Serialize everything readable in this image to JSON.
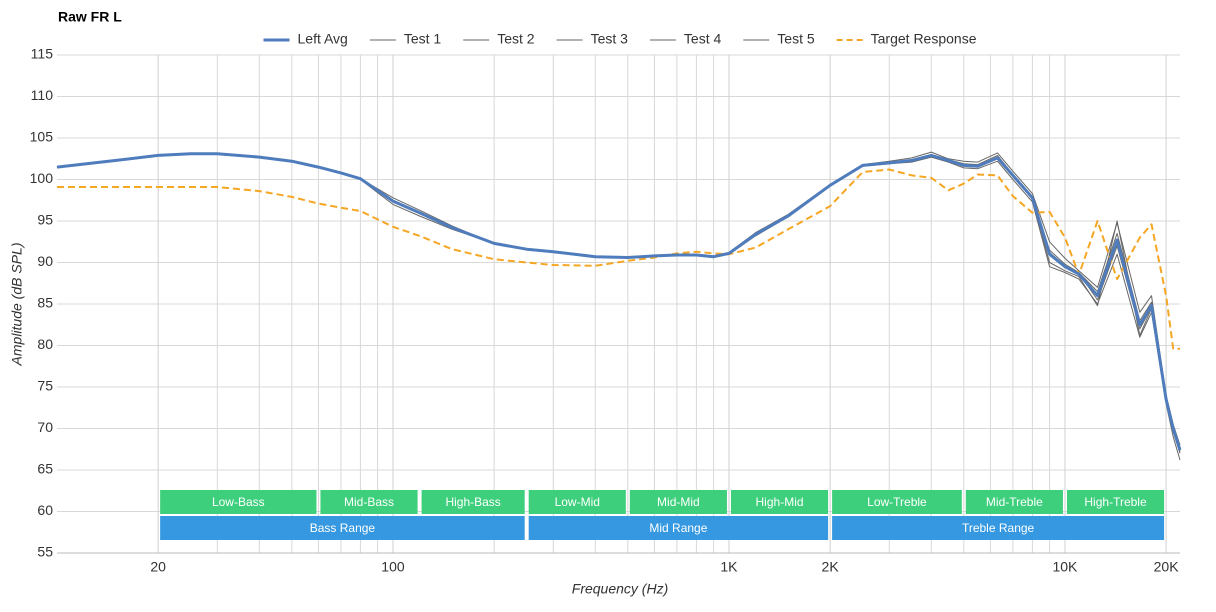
{
  "chart_data": {
    "type": "line",
    "title": "Raw FR L",
    "x_label": "Frequency (Hz)",
    "y_label": "Amplitude (dB SPL)",
    "x_scale": "log",
    "xlim": [
      10,
      22000
    ],
    "ylim": [
      55,
      115
    ],
    "xticks": [
      20,
      100,
      {
        "value": 1000,
        "label": "1K"
      },
      {
        "value": 2000,
        "label": "2K"
      },
      {
        "value": 10000,
        "label": "10K"
      },
      {
        "value": 20000,
        "label": "20K"
      }
    ],
    "xminor": [
      30,
      40,
      50,
      60,
      70,
      80,
      90,
      200,
      300,
      400,
      500,
      600,
      700,
      800,
      900,
      3000,
      4000,
      5000,
      6000,
      7000,
      8000,
      9000
    ],
    "yticks": [
      55,
      60,
      65,
      70,
      75,
      80,
      85,
      90,
      95,
      100,
      105,
      110,
      115
    ],
    "grid": true,
    "legend": "top",
    "x": [
      10,
      15,
      20,
      25,
      30,
      40,
      50,
      60,
      70,
      80,
      100,
      120,
      150,
      200,
      250,
      300,
      400,
      500,
      600,
      700,
      800,
      900,
      1000,
      1200,
      1500,
      2000,
      2500,
      3000,
      3500,
      4000,
      4500,
      5000,
      5500,
      6300,
      7000,
      8000,
      9000,
      10000,
      11000,
      12500,
      14300,
      16700,
      18100,
      20000,
      21000,
      22000
    ],
    "series": [
      {
        "name": "Left Avg",
        "color": "#4f7cbc",
        "width": 3,
        "values": [
          101.5,
          102.3,
          102.9,
          103.1,
          103.1,
          102.7,
          102.2,
          101.5,
          100.8,
          100.1,
          97.4,
          96.0,
          94.2,
          92.3,
          91.6,
          91.3,
          90.7,
          90.6,
          90.8,
          90.9,
          90.9,
          90.7,
          91.1,
          93.4,
          95.6,
          99.3,
          101.7,
          102.0,
          102.3,
          102.9,
          102.3,
          101.7,
          101.6,
          102.6,
          100.5,
          97.8,
          91.0,
          89.5,
          88.6,
          86.0,
          92.7,
          82.5,
          84.8,
          73.5,
          70.0,
          67.4
        ]
      },
      {
        "name": "Test 1",
        "color": "#666666",
        "width": 1,
        "values": [
          101.5,
          102.3,
          102.9,
          103.1,
          103.1,
          102.7,
          102.2,
          101.5,
          100.8,
          100.1,
          97.8,
          96.3,
          94.4,
          92.3,
          91.6,
          91.3,
          90.7,
          90.6,
          90.8,
          90.9,
          90.9,
          90.7,
          91.2,
          93.6,
          95.8,
          99.4,
          101.8,
          102.2,
          102.6,
          103.3,
          102.5,
          102.2,
          102.1,
          103.2,
          101.0,
          98.3,
          92.5,
          90.5,
          89.0,
          87.0,
          94.8,
          84.0,
          86.0,
          74.0,
          70.5,
          68.0
        ]
      },
      {
        "name": "Test 2",
        "color": "#666666",
        "width": 1,
        "values": [
          101.5,
          102.3,
          102.9,
          103.1,
          103.1,
          102.7,
          102.2,
          101.5,
          100.8,
          100.0,
          97.0,
          95.6,
          94.0,
          92.3,
          91.6,
          91.3,
          90.7,
          90.6,
          90.8,
          90.9,
          90.9,
          90.7,
          91.0,
          93.2,
          95.5,
          99.2,
          101.6,
          101.9,
          102.1,
          102.7,
          102.1,
          101.4,
          101.3,
          102.2,
          100.0,
          97.3,
          89.5,
          88.8,
          88.0,
          85.0,
          91.0,
          81.0,
          84.0,
          73.0,
          69.0,
          66.2
        ]
      },
      {
        "name": "Test 3",
        "color": "#666666",
        "width": 1,
        "values": [
          101.5,
          102.3,
          102.9,
          103.1,
          103.1,
          102.7,
          102.2,
          101.5,
          100.8,
          100.1,
          97.5,
          96.1,
          94.3,
          92.3,
          91.6,
          91.3,
          90.7,
          90.6,
          90.8,
          90.9,
          90.9,
          90.7,
          91.1,
          93.5,
          95.7,
          99.3,
          101.7,
          102.0,
          102.4,
          103.0,
          102.4,
          101.9,
          101.8,
          102.9,
          100.6,
          97.6,
          90.0,
          89.0,
          88.3,
          84.8,
          95.0,
          81.2,
          84.5,
          73.2,
          69.6,
          67.0
        ]
      },
      {
        "name": "Test 4",
        "color": "#666666",
        "width": 1,
        "values": [
          101.5,
          102.3,
          102.9,
          103.1,
          103.1,
          102.7,
          102.2,
          101.5,
          100.8,
          100.1,
          97.3,
          95.9,
          94.2,
          92.3,
          91.6,
          91.3,
          90.7,
          90.6,
          90.8,
          90.9,
          90.9,
          90.7,
          91.1,
          93.3,
          95.6,
          99.3,
          101.7,
          102.0,
          102.2,
          102.8,
          102.2,
          101.6,
          101.5,
          102.5,
          100.4,
          97.7,
          91.5,
          89.8,
          88.8,
          86.5,
          93.5,
          83.0,
          85.2,
          73.8,
          70.2,
          67.6
        ]
      },
      {
        "name": "Test 5",
        "color": "#666666",
        "width": 1,
        "values": [
          101.5,
          102.3,
          102.9,
          103.1,
          103.1,
          102.7,
          102.2,
          101.5,
          100.8,
          100.1,
          97.4,
          96.0,
          94.2,
          92.3,
          91.6,
          91.3,
          90.7,
          90.6,
          90.8,
          90.9,
          90.9,
          90.7,
          91.1,
          93.4,
          95.6,
          99.3,
          101.7,
          102.0,
          102.3,
          102.9,
          102.3,
          101.7,
          101.6,
          102.6,
          100.5,
          97.9,
          91.2,
          89.6,
          88.7,
          85.5,
          92.0,
          82.0,
          84.6,
          73.5,
          70.0,
          67.2
        ]
      },
      {
        "name": "Target Response",
        "color": "#f5a623",
        "width": 2,
        "dashed": true,
        "values": [
          99.1,
          99.1,
          99.1,
          99.1,
          99.1,
          98.6,
          97.9,
          97.1,
          96.6,
          96.2,
          94.3,
          93.2,
          91.6,
          90.4,
          90.0,
          89.7,
          89.6,
          90.2,
          90.6,
          91.1,
          91.3,
          91.1,
          91.0,
          91.8,
          94.0,
          96.8,
          100.9,
          101.2,
          100.5,
          100.2,
          98.7,
          99.5,
          100.6,
          100.5,
          98.0,
          96.0,
          96.1,
          93.0,
          88.5,
          95.0,
          88.0,
          93.0,
          94.6,
          86.0,
          79.6,
          79.6
        ]
      }
    ],
    "bands": [
      {
        "label": "Low-Bass",
        "from": 20,
        "to": 60
      },
      {
        "label": "Mid-Bass",
        "from": 60,
        "to": 120
      },
      {
        "label": "High-Bass",
        "from": 120,
        "to": 250
      },
      {
        "label": "Low-Mid",
        "from": 250,
        "to": 500
      },
      {
        "label": "Mid-Mid",
        "from": 500,
        "to": 1000
      },
      {
        "label": "High-Mid",
        "from": 1000,
        "to": 2000
      },
      {
        "label": "Low-Treble",
        "from": 2000,
        "to": 5000
      },
      {
        "label": "Mid-Treble",
        "from": 5000,
        "to": 10000
      },
      {
        "label": "High-Treble",
        "from": 10000,
        "to": 20000
      }
    ],
    "band_color": "#3ecf7c",
    "ranges": [
      {
        "label": "Bass Range",
        "from": 20,
        "to": 250
      },
      {
        "label": "Mid Range",
        "from": 250,
        "to": 2000
      },
      {
        "label": "Treble Range",
        "from": 2000,
        "to": 20000
      }
    ],
    "range_color": "#3598e0"
  }
}
